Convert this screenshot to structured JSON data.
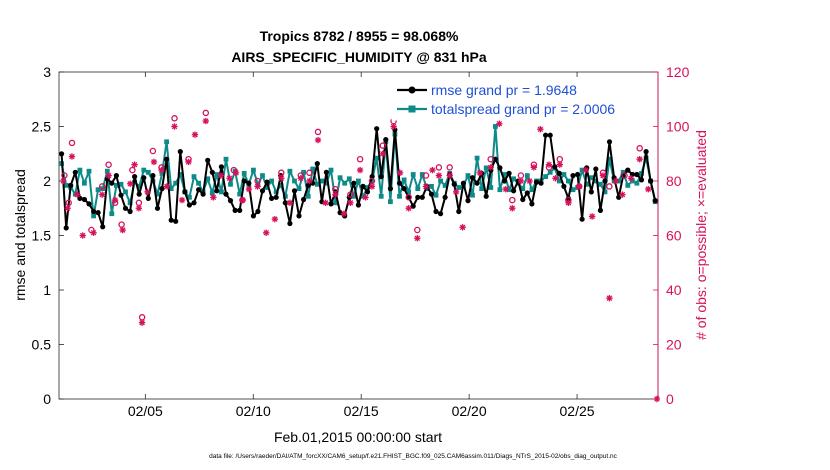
{
  "chart_data": {
    "type": "line",
    "title_line1": "Tropics 8782 / 8955 = 98.068%",
    "title_line2": "AIRS_SPECIFIC_HUMIDITY @ 831 hPa",
    "xlabel": "Feb.01,2015 00:00:00 start",
    "ylabel_left": "rmse and totalspread",
    "ylabel_right": "# of obs: o=possible; ×=evaluated",
    "footer": "data file: /Users/raeder/DAI/ATM_forcXX/CAM6_setup/f.e21.FHIST_BGC.f09_025.CAM6assim.011/Diags_NTrS_2015-02/obs_diag_output.nc",
    "xlim": [
      1,
      28.75
    ],
    "ylim_left": [
      0,
      3
    ],
    "ylim_right": [
      0,
      120
    ],
    "x_ticks": [
      5,
      10,
      15,
      20,
      25
    ],
    "x_tick_labels": [
      "02/05",
      "02/10",
      "02/15",
      "02/20",
      "02/25"
    ],
    "y_ticks_left": [
      0,
      0.5,
      1,
      1.5,
      2,
      2.5,
      3
    ],
    "y_tick_labels_left": [
      "0",
      "0.5",
      "1",
      "1.5",
      "2",
      "2.5",
      "3"
    ],
    "y_ticks_right": [
      0,
      20,
      40,
      60,
      80,
      100,
      120
    ],
    "y_tick_labels_right": [
      "0",
      "20",
      "40",
      "60",
      "80",
      "100",
      "120"
    ],
    "legend_position": "top-right",
    "colors": {
      "rmse": "#000000",
      "spread": "#0f8a8a",
      "obs": "#d6115c",
      "legend_text": "#1f4fd6"
    },
    "series": [
      {
        "name": "rmse grand pr = 1.9648",
        "values": [
          2.25,
          1.57,
          1.96,
          2.08,
          1.84,
          1.83,
          1.79,
          1.72,
          1.71,
          1.58,
          2.02,
          1.98,
          2.05,
          1.87,
          1.75,
          1.72,
          2.04,
          1.88,
          2.03,
          1.84,
          2.05,
          1.75,
          1.93,
          2.2,
          1.64,
          1.63,
          2.27,
          1.9,
          1.78,
          1.8,
          1.92,
          1.88,
          2.19,
          2.08,
          1.91,
          2.13,
          1.88,
          1.82,
          1.73,
          1.73,
          2.0,
          1.98,
          1.68,
          1.72,
          1.91,
          1.99,
          1.84,
          1.85,
          2.05,
          1.8,
          1.61,
          1.91,
          1.68,
          1.83,
          1.96,
          1.98,
          2.16,
          1.81,
          2.08,
          1.79,
          1.9,
          1.71,
          1.68,
          1.85,
          1.98,
          1.78,
          1.95,
          1.9,
          2.04,
          2.48,
          2.04,
          2.38,
          1.93,
          2.47,
          1.98,
          1.93,
          1.85,
          1.77,
          1.85,
          1.85,
          1.95,
          1.88,
          1.72,
          1.7,
          1.85,
          2.06,
          1.97,
          1.72,
          1.98,
          1.82,
          2.03,
          1.98,
          2.07,
          1.86,
          2.1,
          2.2,
          2.12,
          2.0,
          2.07,
          1.91,
          2.0,
          1.83,
          1.89,
          1.79,
          1.99,
          1.98,
          2.42,
          2.42,
          2.13,
          2.07,
          1.95,
          1.84,
          2.05,
          2.06,
          1.65,
          2.12,
          1.9,
          2.11,
          1.73,
          2.0,
          2.36,
          2.03,
          1.85,
          2.05,
          2.1,
          2.06,
          2.06,
          2.01,
          2.27,
          2.0,
          1.82
        ]
      },
      {
        "name": "totalspread grand pr = 2.0006",
        "values": [
          2.16,
          1.96,
          1.94,
          1.88,
          2.1,
          1.98,
          2.09,
          1.68,
          1.92,
          1.93,
          2.09,
          1.7,
          1.96,
          1.97,
          1.9,
          1.8,
          1.99,
          1.95,
          2.1,
          2.08,
          2.0,
          1.88,
          2.07,
          2.36,
          1.93,
          1.98,
          2.06,
          1.9,
          1.85,
          2.04,
          1.98,
          1.9,
          2.02,
          1.89,
          2.06,
          1.9,
          2.2,
          1.97,
          2.09,
          1.88,
          2.07,
          1.97,
          2.1,
          1.97,
          2.05,
          1.94,
          2.0,
          1.9,
          1.96,
          1.86,
          2.09,
          2.0,
          1.93,
          2.08,
          1.86,
          2.11,
          1.97,
          2.0,
          1.98,
          2.1,
          1.8,
          2.03,
          1.98,
          2.02,
          1.86,
          2.0,
          1.86,
          1.94,
          2.0,
          2.21,
          1.86,
          2.36,
          1.81,
          2.43,
          1.86,
          2.01,
          1.9,
          2.06,
          1.93,
          2.06,
          1.93,
          1.95,
          1.87,
          2.0,
          1.96,
          2.07,
          1.98,
          1.94,
          1.96,
          2.05,
          1.87,
          2.21,
          1.93,
          2.12,
          1.94,
          2.5,
          1.92,
          2.06,
          1.92,
          2.02,
          1.98,
          1.93,
          2.05,
          1.92,
          2.0,
          2.0,
          2.04,
          2.08,
          2.12,
          2.0,
          2.06,
          2.0,
          1.92,
          1.94,
          2.1,
          1.97,
          2.03,
          2.0,
          1.97,
          1.9,
          2.2,
          2.0,
          2.0,
          2.08,
          1.96,
          2.0,
          1.98,
          2.07,
          2.21,
          2.0,
          1.81
        ]
      }
    ],
    "obs_possible": [
      {
        "x": 1.25,
        "y": 82
      },
      {
        "x": 1.45,
        "y": 72
      },
      {
        "x": 1.6,
        "y": 94
      },
      {
        "x": 2.5,
        "y": 62
      },
      {
        "x": 3.0,
        "y": 78
      },
      {
        "x": 3.3,
        "y": 86
      },
      {
        "x": 3.6,
        "y": 72
      },
      {
        "x": 3.9,
        "y": 64
      },
      {
        "x": 4.4,
        "y": 84
      },
      {
        "x": 4.7,
        "y": 72
      },
      {
        "x": 4.85,
        "y": 30
      },
      {
        "x": 5.35,
        "y": 91
      },
      {
        "x": 5.75,
        "y": 85
      },
      {
        "x": 6.35,
        "y": 103
      },
      {
        "x": 7.0,
        "y": 88
      },
      {
        "x": 7.8,
        "y": 105
      },
      {
        "x": 9.1,
        "y": 84
      },
      {
        "x": 9.5,
        "y": 73
      },
      {
        "x": 10.2,
        "y": 80
      },
      {
        "x": 11.3,
        "y": 83
      },
      {
        "x": 12.2,
        "y": 82
      },
      {
        "x": 12.6,
        "y": 83
      },
      {
        "x": 13.0,
        "y": 98
      },
      {
        "x": 13.8,
        "y": 77
      },
      {
        "x": 14.5,
        "y": 75
      },
      {
        "x": 14.95,
        "y": 88
      },
      {
        "x": 15.5,
        "y": 80
      },
      {
        "x": 16.0,
        "y": 93
      },
      {
        "x": 16.5,
        "y": 102
      },
      {
        "x": 17.2,
        "y": 74
      },
      {
        "x": 17.6,
        "y": 62
      },
      {
        "x": 18.0,
        "y": 82
      },
      {
        "x": 18.6,
        "y": 85
      },
      {
        "x": 19.1,
        "y": 85
      },
      {
        "x": 20.0,
        "y": 112
      },
      {
        "x": 21.0,
        "y": 88
      },
      {
        "x": 22.0,
        "y": 73
      },
      {
        "x": 22.4,
        "y": 82
      },
      {
        "x": 23.0,
        "y": 86
      },
      {
        "x": 23.7,
        "y": 85
      },
      {
        "x": 24.2,
        "y": 88
      },
      {
        "x": 24.6,
        "y": 73
      },
      {
        "x": 25.1,
        "y": 78
      },
      {
        "x": 26.2,
        "y": 83
      },
      {
        "x": 26.5,
        "y": 78
      },
      {
        "x": 27.2,
        "y": 82
      },
      {
        "x": 27.9,
        "y": 92
      }
    ],
    "obs_evaluated": [
      {
        "x": 1.2,
        "y": 80
      },
      {
        "x": 1.4,
        "y": 70
      },
      {
        "x": 1.6,
        "y": 89
      },
      {
        "x": 1.85,
        "y": 75
      },
      {
        "x": 2.1,
        "y": 60
      },
      {
        "x": 2.6,
        "y": 61
      },
      {
        "x": 3.0,
        "y": 75
      },
      {
        "x": 3.3,
        "y": 82
      },
      {
        "x": 3.6,
        "y": 73
      },
      {
        "x": 3.95,
        "y": 62
      },
      {
        "x": 4.3,
        "y": 79
      },
      {
        "x": 4.5,
        "y": 86
      },
      {
        "x": 4.7,
        "y": 70
      },
      {
        "x": 4.85,
        "y": 28
      },
      {
        "x": 5.1,
        "y": 76
      },
      {
        "x": 5.4,
        "y": 87
      },
      {
        "x": 5.75,
        "y": 84
      },
      {
        "x": 6.0,
        "y": 78
      },
      {
        "x": 6.35,
        "y": 100
      },
      {
        "x": 6.7,
        "y": 73
      },
      {
        "x": 7.0,
        "y": 87
      },
      {
        "x": 7.3,
        "y": 97
      },
      {
        "x": 7.8,
        "y": 102
      },
      {
        "x": 8.15,
        "y": 74
      },
      {
        "x": 8.5,
        "y": 82
      },
      {
        "x": 8.9,
        "y": 81
      },
      {
        "x": 9.2,
        "y": 83
      },
      {
        "x": 9.5,
        "y": 73
      },
      {
        "x": 9.8,
        "y": 77
      },
      {
        "x": 10.2,
        "y": 78
      },
      {
        "x": 10.6,
        "y": 61
      },
      {
        "x": 11.0,
        "y": 66
      },
      {
        "x": 11.3,
        "y": 81
      },
      {
        "x": 11.7,
        "y": 72
      },
      {
        "x": 12.2,
        "y": 81
      },
      {
        "x": 12.6,
        "y": 80
      },
      {
        "x": 13.0,
        "y": 95
      },
      {
        "x": 13.35,
        "y": 72
      },
      {
        "x": 13.8,
        "y": 75
      },
      {
        "x": 14.2,
        "y": 68
      },
      {
        "x": 14.5,
        "y": 72
      },
      {
        "x": 14.95,
        "y": 84
      },
      {
        "x": 15.2,
        "y": 74
      },
      {
        "x": 15.5,
        "y": 78
      },
      {
        "x": 16.0,
        "y": 90
      },
      {
        "x": 16.5,
        "y": 100
      },
      {
        "x": 16.8,
        "y": 83
      },
      {
        "x": 17.2,
        "y": 70
      },
      {
        "x": 17.6,
        "y": 59
      },
      {
        "x": 18.0,
        "y": 78
      },
      {
        "x": 18.3,
        "y": 84
      },
      {
        "x": 18.6,
        "y": 82
      },
      {
        "x": 19.1,
        "y": 82
      },
      {
        "x": 19.4,
        "y": 76
      },
      {
        "x": 19.7,
        "y": 63
      },
      {
        "x": 20.0,
        "y": 110
      },
      {
        "x": 20.5,
        "y": 83
      },
      {
        "x": 21.0,
        "y": 85
      },
      {
        "x": 21.4,
        "y": 101
      },
      {
        "x": 21.7,
        "y": 77
      },
      {
        "x": 22.0,
        "y": 70
      },
      {
        "x": 22.4,
        "y": 80
      },
      {
        "x": 22.8,
        "y": 80
      },
      {
        "x": 23.0,
        "y": 85
      },
      {
        "x": 23.3,
        "y": 99
      },
      {
        "x": 23.7,
        "y": 86
      },
      {
        "x": 24.0,
        "y": 81
      },
      {
        "x": 24.2,
        "y": 86
      },
      {
        "x": 24.6,
        "y": 72
      },
      {
        "x": 25.1,
        "y": 78
      },
      {
        "x": 25.4,
        "y": 84
      },
      {
        "x": 25.7,
        "y": 67
      },
      {
        "x": 26.2,
        "y": 82
      },
      {
        "x": 26.5,
        "y": 37
      },
      {
        "x": 26.8,
        "y": 80
      },
      {
        "x": 27.1,
        "y": 75
      },
      {
        "x": 27.5,
        "y": 81
      },
      {
        "x": 27.9,
        "y": 88
      },
      {
        "x": 28.3,
        "y": 77
      },
      {
        "x": 28.7,
        "y": 0
      }
    ]
  }
}
